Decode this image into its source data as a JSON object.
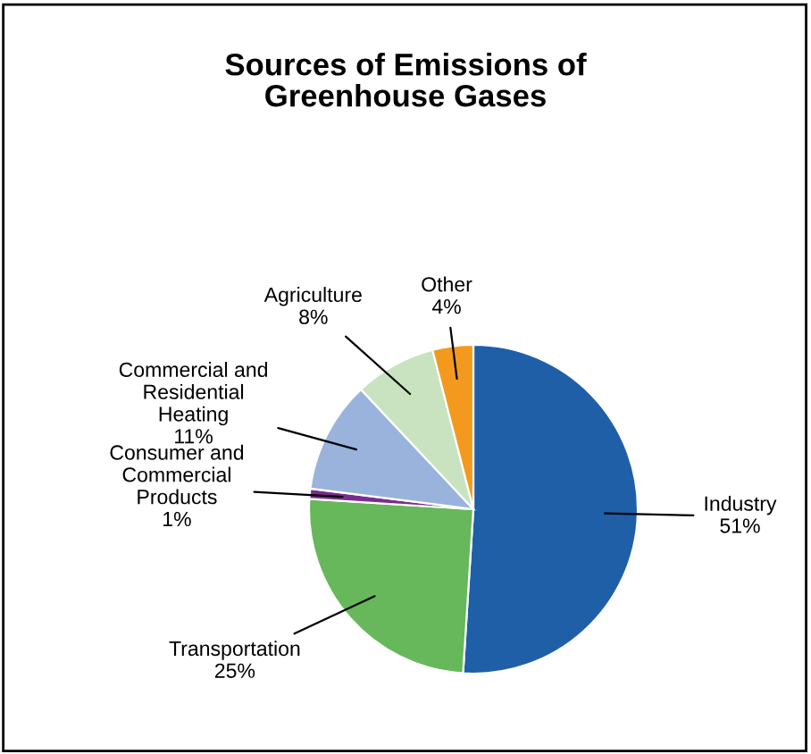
{
  "chart_data": {
    "type": "pie",
    "title": "Sources of Emissions of\nGreenhouse Gases",
    "categories": [
      "Industry",
      "Transportation",
      "Consumer and\nCommercial\nProducts",
      "Commercial and\nResidential\nHeating",
      "Agriculture",
      "Other"
    ],
    "values": [
      51,
      25,
      1,
      11,
      8,
      4
    ],
    "colors": [
      "#1f5fa8",
      "#66b85a",
      "#7b2d8e",
      "#9ab3dc",
      "#c9e3c0",
      "#f39a1e"
    ],
    "value_labels": [
      "51%",
      "25%",
      "1%",
      "11%",
      "8%",
      "4%"
    ]
  }
}
